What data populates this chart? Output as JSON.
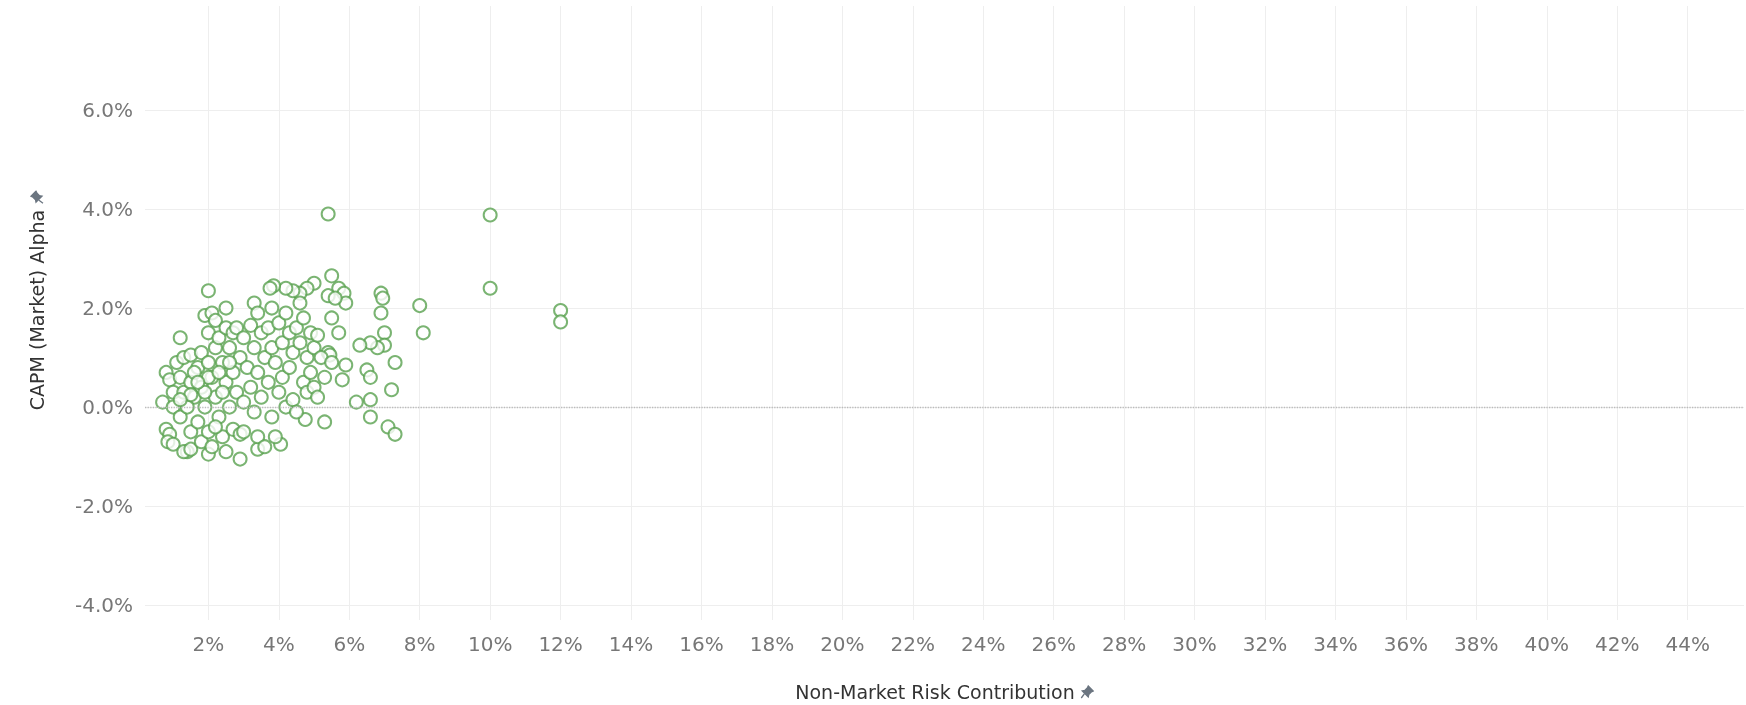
{
  "chart_data": {
    "type": "scatter",
    "xlabel": "Non-Market Risk Contribution",
    "ylabel": "CAPM (Market) Alpha",
    "xlim": [
      0.2,
      45.6
    ],
    "ylim": [
      -4.3,
      8.1
    ],
    "xticks": [
      {
        "value": 2,
        "label": "2%"
      },
      {
        "value": 4,
        "label": "4%"
      },
      {
        "value": 6,
        "label": "6%"
      },
      {
        "value": 8,
        "label": "8%"
      },
      {
        "value": 10,
        "label": "10%"
      },
      {
        "value": 12,
        "label": "12%"
      },
      {
        "value": 14,
        "label": "14%"
      },
      {
        "value": 16,
        "label": "16%"
      },
      {
        "value": 18,
        "label": "18%"
      },
      {
        "value": 20,
        "label": "20%"
      },
      {
        "value": 22,
        "label": "22%"
      },
      {
        "value": 24,
        "label": "24%"
      },
      {
        "value": 26,
        "label": "26%"
      },
      {
        "value": 28,
        "label": "28%"
      },
      {
        "value": 30,
        "label": "30%"
      },
      {
        "value": 32,
        "label": "32%"
      },
      {
        "value": 34,
        "label": "34%"
      },
      {
        "value": 36,
        "label": "36%"
      },
      {
        "value": 38,
        "label": "38%"
      },
      {
        "value": 40,
        "label": "40%"
      },
      {
        "value": 42,
        "label": "42%"
      },
      {
        "value": 44,
        "label": "44%"
      }
    ],
    "yticks": [
      {
        "value": -4,
        "label": "-4.0%"
      },
      {
        "value": -2,
        "label": "-2.0%"
      },
      {
        "value": 0,
        "label": "0.0%"
      },
      {
        "value": 2,
        "label": "2.0%"
      },
      {
        "value": 4,
        "label": "4.0%"
      },
      {
        "value": 6,
        "label": "6.0%"
      }
    ],
    "grid": true,
    "marker": "circle",
    "ref_lines": [
      {
        "axis": "y",
        "value": 0,
        "color": "#bbbbbb",
        "line_style": "dotted"
      }
    ],
    "series": [
      {
        "color": "#59a14f",
        "x": [
          5.4,
          10.0,
          10.0,
          12.0,
          12.0,
          8.0,
          8.1,
          6.9,
          6.95,
          6.9,
          7.0,
          7.0,
          6.8,
          6.6,
          6.3,
          7.3,
          6.5,
          6.2,
          6.6,
          7.2,
          6.6,
          6.6,
          7.1,
          7.3,
          5.3,
          4.75,
          5.8,
          5.9,
          5.5,
          5.7,
          5.85,
          5.9,
          5.4,
          5.6,
          5.5,
          5.7,
          5.4,
          5.45,
          5.0,
          4.8,
          4.6,
          4.4,
          4.2,
          3.85,
          3.75,
          2.0,
          1.2,
          0.7,
          2.9,
          4.05,
          3.4,
          2.0,
          1.4,
          0.8,
          0.9,
          0.8,
          0.9,
          0.85,
          1.0,
          1.0,
          1.0,
          1.1,
          1.2,
          1.2,
          1.3,
          1.3,
          1.3,
          1.5,
          1.5,
          1.5,
          1.5,
          1.6,
          1.7,
          1.7,
          1.8,
          1.8,
          1.8,
          1.9,
          1.9,
          2.0,
          2.0,
          2.0,
          2.1,
          2.1,
          2.1,
          2.2,
          2.2,
          2.2,
          2.3,
          2.3,
          2.4,
          2.4,
          2.5,
          2.5,
          2.5,
          2.5,
          2.6,
          2.6,
          2.7,
          2.7,
          2.7,
          2.8,
          2.8,
          2.9,
          2.9,
          3.0,
          3.0,
          3.0,
          3.1,
          3.2,
          3.2,
          3.3,
          3.3,
          3.3,
          3.4,
          3.4,
          3.4,
          3.5,
          3.5,
          3.6,
          3.6,
          3.7,
          3.7,
          3.8,
          3.8,
          3.8,
          3.9,
          3.9,
          4.0,
          4.0,
          4.1,
          4.1,
          4.2,
          4.2,
          4.3,
          4.3,
          4.4,
          4.4,
          4.5,
          4.5,
          4.6,
          4.6,
          4.7,
          4.7,
          4.8,
          4.8,
          4.9,
          4.9,
          5.0,
          5.0,
          5.1,
          5.1,
          5.2,
          5.3,
          5.5,
          1.4,
          1.6,
          1.9,
          2.2,
          2.0,
          1.7,
          2.3,
          1.5,
          1.2,
          2.6,
          2.4
        ],
        "values": [
          3.9,
          3.88,
          2.4,
          1.95,
          1.72,
          2.05,
          1.5,
          2.3,
          2.2,
          1.9,
          1.5,
          1.25,
          1.2,
          1.3,
          1.25,
          0.9,
          0.75,
          0.1,
          0.6,
          0.35,
          0.15,
          -0.2,
          -0.4,
          -0.55,
          -0.3,
          -0.25,
          0.55,
          0.85,
          2.65,
          2.4,
          2.3,
          2.1,
          2.25,
          2.2,
          1.8,
          1.5,
          1.1,
          1.05,
          2.5,
          2.4,
          2.3,
          2.35,
          2.4,
          2.45,
          2.4,
          2.35,
          1.4,
          0.1,
          -1.05,
          -0.75,
          -0.85,
          -0.95,
          -0.9,
          0.7,
          0.55,
          -0.45,
          -0.55,
          -0.7,
          -0.75,
          0.3,
          0.0,
          0.9,
          0.6,
          -0.2,
          1.0,
          0.3,
          -0.9,
          1.05,
          0.5,
          -0.5,
          -0.85,
          0.2,
          0.8,
          -0.3,
          1.1,
          0.4,
          -0.7,
          1.85,
          0.0,
          1.5,
          0.9,
          -0.5,
          1.9,
          0.6,
          -0.8,
          1.75,
          1.2,
          0.2,
          1.4,
          -0.2,
          0.9,
          -0.6,
          2.0,
          1.6,
          0.5,
          -0.9,
          1.2,
          0.0,
          1.5,
          0.7,
          -0.45,
          1.6,
          0.3,
          1.0,
          -0.55,
          1.4,
          0.1,
          -0.5,
          0.8,
          1.65,
          0.4,
          2.1,
          1.2,
          -0.1,
          1.9,
          0.7,
          -0.6,
          1.5,
          0.2,
          1.0,
          -0.8,
          1.6,
          0.5,
          2.0,
          1.2,
          -0.2,
          0.9,
          -0.6,
          1.7,
          0.3,
          1.3,
          0.6,
          1.9,
          0.0,
          1.5,
          0.8,
          1.1,
          0.15,
          1.6,
          -0.1,
          2.1,
          1.3,
          0.5,
          1.8,
          1.0,
          0.3,
          1.5,
          0.7,
          1.2,
          0.4,
          1.45,
          0.2,
          1.0,
          0.6,
          0.9,
          0.0,
          0.7,
          0.3,
          -0.4,
          0.6,
          0.5,
          0.7,
          0.25,
          0.15,
          0.9,
          0.3
        ]
      }
    ]
  }
}
